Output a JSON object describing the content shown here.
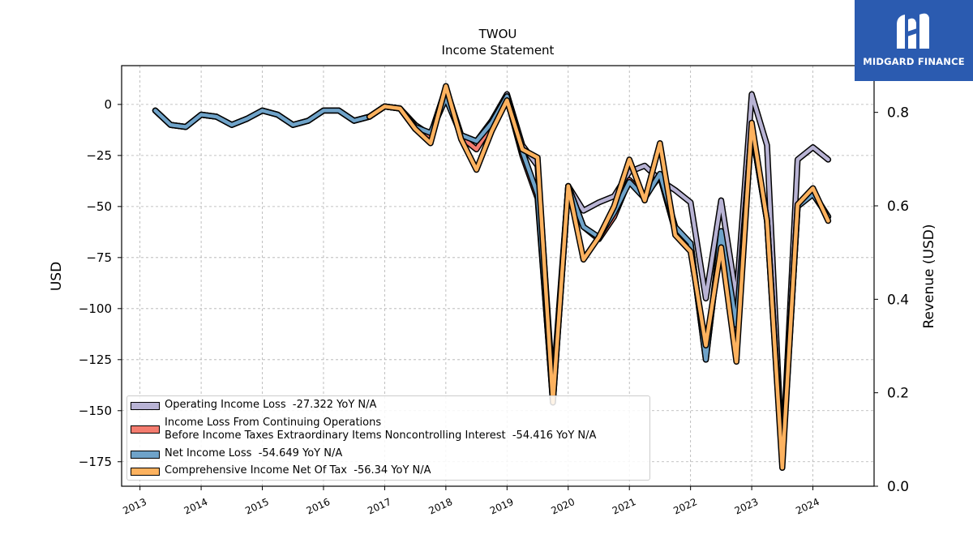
{
  "chart_data": {
    "type": "line",
    "title": "TWOU",
    "subtitle": "Income Statement",
    "ylabel": "USD",
    "ylabel_right": "Revenue (USD)",
    "ylim": [
      -187,
      19
    ],
    "ylim_right": [
      0,
      0.9
    ],
    "y_ticks": [
      0,
      -25,
      -50,
      -75,
      -100,
      -125,
      -150,
      -175
    ],
    "y_ticks_right": [
      0.0,
      0.2,
      0.4,
      0.6,
      0.8
    ],
    "x_ticks": [
      2013,
      2014,
      2015,
      2016,
      2017,
      2018,
      2019,
      2020,
      2021,
      2022,
      2023,
      2024
    ],
    "xlim": [
      2012.7,
      2025.0
    ],
    "grid": true,
    "legend_position": "lower-left",
    "series": [
      {
        "name": "Operating Income Loss",
        "legend_label": "Operating Income Loss  -27.322 YoY N/A",
        "color": "#b8b3d4",
        "start": 2013.25,
        "values": [
          -3,
          -10,
          -11,
          -5,
          -6,
          -10,
          -7,
          -3,
          -5,
          -10,
          -8,
          -3,
          -3,
          -8,
          -6,
          -1,
          -2,
          -10,
          -15,
          8,
          -15,
          -18,
          -8,
          5,
          -20,
          -30,
          -140,
          -40,
          -52,
          -48,
          -45,
          -33,
          -30,
          -37,
          -42,
          -48,
          -95,
          -47,
          -95,
          5,
          -20,
          -175,
          -27,
          -21,
          -27
        ]
      },
      {
        "name": "Income Loss From Continuing Operations Before Income Taxes Extraordinary Items Noncontrolling Interest",
        "legend_label": "Income Loss From Continuing Operations\nBefore Income Taxes Extraordinary Items Noncontrolling Interest  -54.416 YoY N/A",
        "color": "#f47c6f",
        "start": 2013.25,
        "values": [
          -3,
          -10,
          -11,
          -5,
          -6,
          -10,
          -7,
          -3,
          -5,
          -10,
          -8,
          -3,
          -3,
          -8,
          -6,
          -1,
          -2,
          -12,
          -16,
          6,
          -16,
          -22,
          -10,
          3,
          -25,
          -46,
          -145,
          -40,
          -60,
          -66,
          -55,
          -37,
          -45,
          -35,
          -62,
          -68,
          -125,
          -63,
          -110,
          -12,
          -57,
          -175,
          -50,
          -43,
          -55
        ]
      },
      {
        "name": "Net Income Loss",
        "legend_label": "Net Income Loss  -54.649 YoY N/A",
        "color": "#6fa3c9",
        "start": 2013.25,
        "values": [
          -3,
          -10,
          -11,
          -5,
          -6,
          -10,
          -7,
          -3,
          -5,
          -10,
          -8,
          -3,
          -3,
          -8,
          -6,
          -1,
          -2,
          -11,
          -14,
          3,
          -15,
          -18,
          -9,
          4,
          -23,
          -44,
          -146,
          -40,
          -60,
          -65,
          -53,
          -38,
          -46,
          -34,
          -60,
          -68,
          -125,
          -62,
          -108,
          -12,
          -57,
          -175,
          -50,
          -44,
          -55
        ]
      },
      {
        "name": "Comprehensive Income Net Of Tax",
        "legend_label": "Comprehensive Income Net Of Tax  -56.34 YoY N/A",
        "color": "#fdb25f",
        "start": 2016.75,
        "values": [
          -6,
          -1,
          -2,
          -12,
          -19,
          9,
          -17,
          -32,
          -13,
          2,
          -22,
          -26,
          -146,
          -40,
          -76,
          -65,
          -50,
          -27,
          -47,
          -19,
          -64,
          -72,
          -118,
          -70,
          -126,
          -9,
          -57,
          -178,
          -49,
          -41,
          -57
        ]
      }
    ]
  },
  "logo": {
    "brand": "MIDGARD FINANCE",
    "icon": "midgard-logo-icon"
  }
}
